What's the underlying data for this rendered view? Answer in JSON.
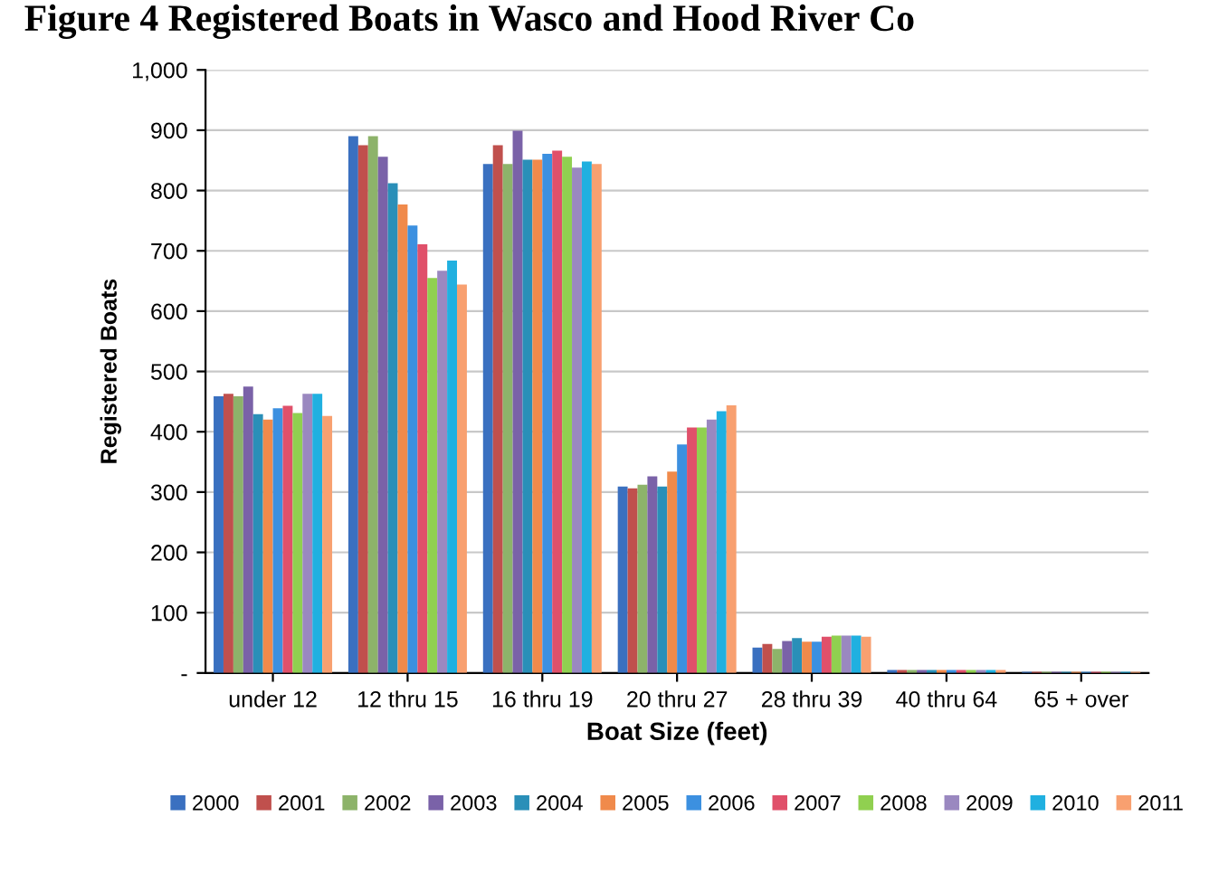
{
  "chart_data": {
    "type": "bar",
    "title": "Figure 4 Registered Boats in Wasco and Hood River Co",
    "xlabel": "Boat Size (feet)",
    "ylabel": "Registered Boats",
    "categories": [
      "under 12",
      "12 thru 15",
      "16 thru 19",
      "20 thru 27",
      "28 thru 39",
      "40 thru 64",
      "65 + over"
    ],
    "series": [
      {
        "name": "2000",
        "color": "#3a70c0",
        "values": [
          459,
          890,
          844,
          309,
          42,
          5,
          2
        ]
      },
      {
        "name": "2001",
        "color": "#c0504d",
        "values": [
          463,
          875,
          875,
          306,
          48,
          5,
          2
        ]
      },
      {
        "name": "2002",
        "color": "#8db36a",
        "values": [
          459,
          890,
          844,
          312,
          40,
          5,
          2
        ]
      },
      {
        "name": "2003",
        "color": "#7a62a8",
        "values": [
          475,
          856,
          899,
          326,
          53,
          5,
          2
        ]
      },
      {
        "name": "2004",
        "color": "#2a8fb8",
        "values": [
          429,
          812,
          851,
          309,
          58,
          5,
          2
        ]
      },
      {
        "name": "2005",
        "color": "#f08a4b",
        "values": [
          420,
          777,
          851,
          334,
          52,
          5,
          2
        ]
      },
      {
        "name": "2006",
        "color": "#3c90e0",
        "values": [
          439,
          742,
          861,
          379,
          52,
          5,
          2
        ]
      },
      {
        "name": "2007",
        "color": "#e0506a",
        "values": [
          443,
          711,
          866,
          407,
          60,
          5,
          2
        ]
      },
      {
        "name": "2008",
        "color": "#90d050",
        "values": [
          431,
          655,
          856,
          407,
          62,
          5,
          2
        ]
      },
      {
        "name": "2009",
        "color": "#9a88c0",
        "values": [
          463,
          667,
          838,
          420,
          62,
          5,
          2
        ]
      },
      {
        "name": "2010",
        "color": "#20b0e0",
        "values": [
          463,
          684,
          848,
          434,
          62,
          5,
          2
        ]
      },
      {
        "name": "2011",
        "color": "#f8a070",
        "values": [
          426,
          644,
          844,
          444,
          60,
          5,
          2
        ]
      }
    ],
    "ylim": [
      0,
      1000
    ],
    "yticks": [
      {
        "value": 0,
        "label": "-"
      },
      100,
      200,
      300,
      400,
      500,
      600,
      700,
      800,
      900,
      {
        "value": 1000,
        "label": "1,000"
      }
    ],
    "grid": "y",
    "legend": "bottom"
  }
}
